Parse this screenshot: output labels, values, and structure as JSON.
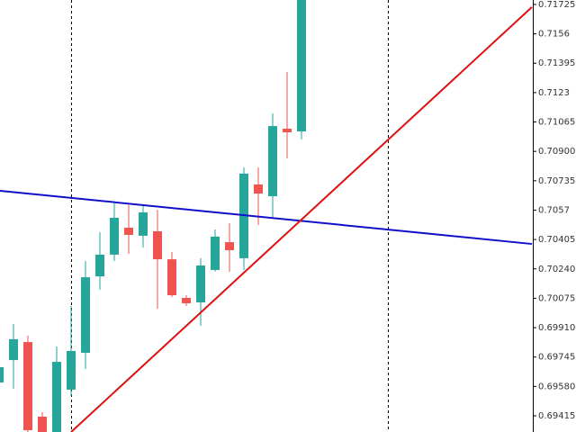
{
  "chart_data": {
    "type": "candlestick",
    "open": [
      0.69602,
      0.69728,
      0.69829,
      0.6941,
      0.69324,
      0.69562,
      0.69769,
      0.70198,
      0.7032,
      0.70471,
      0.70426,
      0.70451,
      0.70294,
      0.70077,
      0.70052,
      0.70234,
      0.7039,
      0.703,
      0.70714,
      0.70648,
      0.71027,
      0.71012
    ],
    "high": [
      0.69754,
      0.69931,
      0.69865,
      0.69435,
      0.69804,
      0.70032,
      0.70284,
      0.70446,
      0.70608,
      0.70598,
      0.70598,
      0.70572,
      0.70335,
      0.70092,
      0.703,
      0.70461,
      0.70497,
      0.7081,
      0.7081,
      0.71113,
      0.71346,
      0.7175
    ],
    "low": [
      0.69526,
      0.69567,
      0.69324,
      0.69324,
      0.69324,
      0.69526,
      0.69678,
      0.70123,
      0.70284,
      0.70325,
      0.7036,
      0.70016,
      0.70082,
      0.70032,
      0.6992,
      0.70224,
      0.70224,
      0.70234,
      0.70486,
      0.70522,
      0.7086,
      0.70967
    ],
    "close": [
      0.69688,
      0.69845,
      0.69334,
      0.69324,
      0.69718,
      0.69779,
      0.70193,
      0.7032,
      0.70527,
      0.70431,
      0.70557,
      0.70294,
      0.70092,
      0.70047,
      0.70259,
      0.70421,
      0.70345,
      0.70775,
      0.70663,
      0.71042,
      0.71007,
      0.7175
    ],
    "up_color": "#26a69a",
    "down_color": "#ef5350",
    "trendlines": [
      {
        "color": "#1010c8",
        "x": [
          0,
          37
        ],
        "values": [
          0.70679,
          0.7038
        ]
      },
      {
        "color": "#e01010",
        "x": [
          5,
          37
        ],
        "values": [
          0.69324,
          0.7171
        ]
      }
    ],
    "ylim": [
      0.69324,
      0.7175
    ],
    "yticks": [
      0.71725,
      0.7156,
      0.71395,
      0.7123,
      0.71065,
      {
        "value": 0.709,
        "label": "0.70900"
      },
      0.70735,
      0.7057,
      0.70405,
      {
        "value": 0.7024,
        "label": "0.70240"
      },
      0.70075,
      {
        "value": 0.6991,
        "label": "0.69910"
      },
      0.69745,
      {
        "value": 0.6958,
        "label": "0.69580"
      },
      0.69415
    ]
  }
}
